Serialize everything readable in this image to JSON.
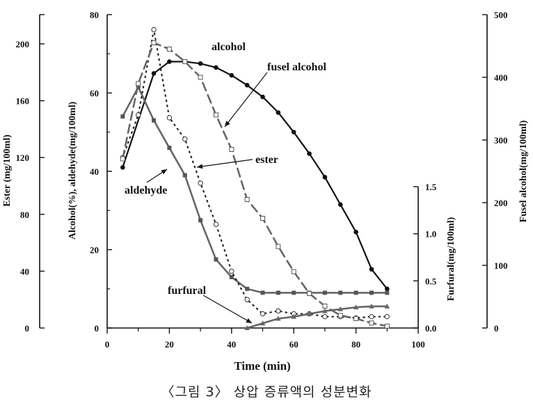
{
  "chart_data": {
    "type": "line",
    "caption": "〈그림 3〉 상압 증류액의 성분변화",
    "xlabel": "Time (min)",
    "xlim": [
      0,
      100
    ],
    "xticks": [
      0,
      20,
      40,
      60,
      80,
      100
    ],
    "axes": {
      "main": {
        "label": "Alcohol(%), aldehyde(mg/100ml)",
        "ylim": [
          0,
          80
        ],
        "ticks": [
          0,
          20,
          40,
          60,
          80
        ]
      },
      "ester": {
        "label": "Ester (mg/100ml)",
        "ylim": [
          0,
          220
        ],
        "ticks": [
          0,
          40,
          80,
          120,
          160,
          200
        ]
      },
      "furfural": {
        "label": "Furfural(mg/100ml)",
        "ylim": [
          0,
          1.5
        ],
        "ticks": [
          "0.0",
          "0.5",
          "1.0",
          "1.5"
        ]
      },
      "fusel": {
        "label": "Fusel alcohol(mg/100ml)",
        "ylim": [
          0,
          500
        ],
        "ticks": [
          0,
          100,
          200,
          300,
          400,
          500
        ]
      }
    },
    "series": [
      {
        "name": "alcohol",
        "axis": "main",
        "style": "solid-dot",
        "x": [
          5,
          15,
          20,
          25,
          30,
          35,
          40,
          45,
          50,
          55,
          60,
          65,
          70,
          75,
          80,
          85,
          90
        ],
        "values": [
          41,
          65,
          68,
          68,
          67.5,
          66.5,
          64.5,
          62,
          59,
          55,
          50,
          44.5,
          38.5,
          31.5,
          24.5,
          15,
          10
        ]
      },
      {
        "name": "aldehyde",
        "axis": "main",
        "style": "solid-square",
        "x": [
          5,
          10,
          15,
          20,
          25,
          30,
          35,
          40,
          45,
          50,
          55,
          60,
          65,
          70,
          75,
          80,
          85,
          90
        ],
        "values": [
          54,
          61.5,
          53,
          46,
          39,
          27.5,
          17.5,
          13,
          10,
          9,
          9,
          9,
          9,
          9,
          9,
          9,
          9,
          9
        ]
      },
      {
        "name": "ester",
        "axis": "ester",
        "style": "dotted-circle",
        "x": [
          5,
          10,
          15,
          20,
          25,
          30,
          35,
          40,
          45,
          50,
          55,
          60,
          65,
          70,
          75,
          80,
          85,
          90
        ],
        "values": [
          120,
          150,
          210,
          148,
          133,
          102,
          73,
          40,
          20,
          10,
          12,
          10,
          10,
          8,
          8,
          7,
          8,
          8
        ]
      },
      {
        "name": "fusel alcohol",
        "axis": "fusel",
        "style": "dashed-square",
        "x": [
          5,
          10,
          15,
          20,
          25,
          30,
          35,
          40,
          45,
          50,
          55,
          60,
          65,
          70,
          75,
          80,
          85,
          90
        ],
        "values": [
          270,
          390,
          455,
          445,
          425,
          400,
          340,
          285,
          205,
          175,
          130,
          90,
          55,
          35,
          20,
          15,
          8,
          3
        ]
      },
      {
        "name": "furfural",
        "axis": "furfural",
        "style": "solid-triangle",
        "x": [
          45,
          50,
          55,
          60,
          65,
          70,
          75,
          80,
          85,
          90
        ],
        "values": [
          0,
          0.05,
          0.1,
          0.12,
          0.15,
          0.18,
          0.2,
          0.22,
          0.23,
          0.23
        ]
      }
    ],
    "annotations": [
      "alcohol",
      "fusel alcohol",
      "ester",
      "aldehyde",
      "furfural"
    ]
  }
}
